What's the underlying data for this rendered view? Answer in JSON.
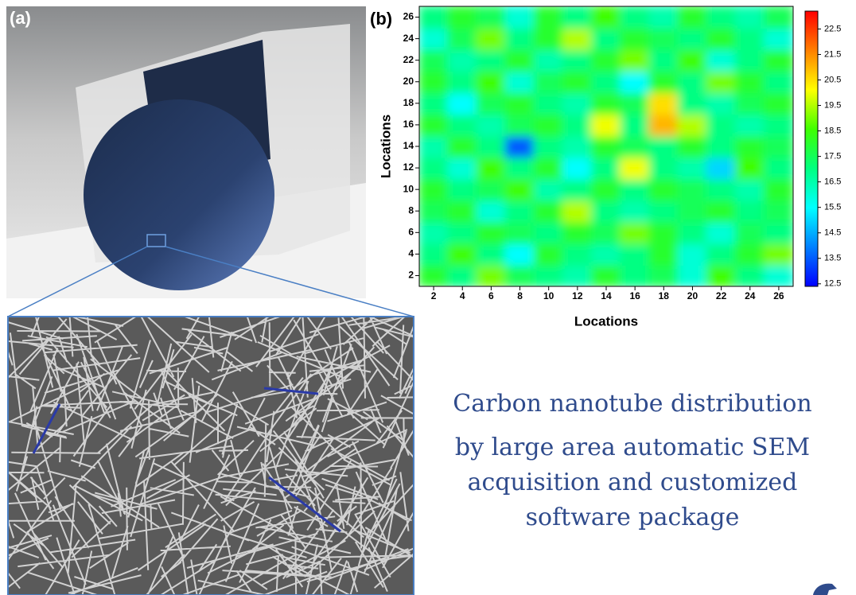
{
  "panel_a": {
    "label": "(a)"
  },
  "chart_data": {
    "type": "heatmap",
    "label": "(b)",
    "x_label": "Locations",
    "y_label": "Locations",
    "x": [
      2,
      4,
      6,
      8,
      10,
      12,
      14,
      16,
      18,
      20,
      22,
      24,
      26
    ],
    "y": [
      2,
      4,
      6,
      8,
      10,
      12,
      14,
      16,
      18,
      20,
      22,
      24,
      26
    ],
    "z": [
      [
        18,
        17,
        19,
        17.5,
        17,
        16.5,
        18,
        17,
        17.5,
        16,
        18.5,
        17,
        16
      ],
      [
        17,
        18.5,
        17,
        15.5,
        18,
        17,
        16.5,
        17,
        18,
        16,
        17,
        18,
        19
      ],
      [
        16.5,
        17,
        18,
        17.5,
        17,
        18,
        17.5,
        19,
        18,
        17,
        16,
        17.5,
        17
      ],
      [
        17.5,
        18,
        16,
        17,
        18,
        19.5,
        17,
        16.5,
        17,
        17.5,
        18,
        17,
        17.5
      ],
      [
        18,
        17,
        17.5,
        18.5,
        16.5,
        17,
        18,
        17,
        18,
        17.5,
        17,
        16.5,
        18
      ],
      [
        17,
        16,
        18.5,
        17,
        18,
        15.5,
        17,
        20,
        17,
        16.5,
        15,
        18.5,
        17
      ],
      [
        16.5,
        18,
        17,
        13.5,
        17,
        16.5,
        18,
        17.5,
        17,
        18,
        17,
        18,
        17.5
      ],
      [
        18,
        17,
        16.5,
        17.5,
        18,
        17,
        20,
        17,
        21,
        19.5,
        17,
        16.5,
        17
      ],
      [
        17,
        15.5,
        17.5,
        18,
        17,
        16.5,
        18,
        17.5,
        20.5,
        17,
        16.5,
        17.5,
        18
      ],
      [
        18,
        17,
        18.5,
        16,
        17.5,
        18,
        17,
        15.5,
        18,
        17,
        19,
        18,
        17
      ],
      [
        17.5,
        16.5,
        17,
        18,
        16.5,
        17,
        18,
        19,
        17,
        18.5,
        16,
        17,
        18
      ],
      [
        16,
        17.5,
        19,
        17,
        18,
        19.5,
        17,
        18,
        17.5,
        17,
        18,
        17,
        16
      ],
      [
        17,
        18,
        17.5,
        16,
        18,
        17,
        18.5,
        17,
        16.5,
        18,
        17,
        16.5,
        17.5
      ]
    ],
    "xlim": [
      1,
      27
    ],
    "ylim": [
      1,
      27
    ],
    "xticks": [
      2,
      4,
      6,
      8,
      10,
      12,
      14,
      16,
      18,
      20,
      22,
      24,
      26
    ],
    "yticks": [
      2,
      4,
      6,
      8,
      10,
      12,
      14,
      16,
      18,
      20,
      22,
      24,
      26
    ],
    "zlim": [
      12.4,
      23.2
    ],
    "zticks": [
      12.5,
      13.5,
      14.5,
      15.5,
      16.5,
      17.5,
      18.5,
      19.5,
      20.5,
      21.5,
      22.5
    ],
    "colormap": [
      "#0000ff",
      "#0080ff",
      "#00ffff",
      "#00ff80",
      "#40ff00",
      "#ffff00",
      "#ff8000",
      "#ff0000"
    ]
  },
  "caption": [
    "Carbon nanotube distribution",
    "by large area automatic SEM",
    "acquisition and customized",
    "software package"
  ]
}
